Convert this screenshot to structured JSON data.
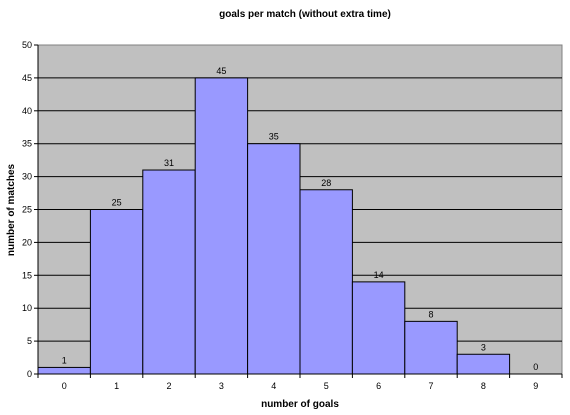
{
  "chart_data": {
    "type": "bar",
    "title": "goals per match (without extra time)",
    "xlabel": "number of goals",
    "ylabel": "number of matches",
    "categories": [
      "0",
      "1",
      "2",
      "3",
      "4",
      "5",
      "6",
      "7",
      "8",
      "9"
    ],
    "values": [
      1,
      25,
      31,
      45,
      35,
      28,
      14,
      8,
      3,
      0
    ],
    "ylim": [
      0,
      50
    ],
    "yticks": [
      0,
      5,
      10,
      15,
      20,
      25,
      30,
      35,
      40,
      45,
      50
    ],
    "grid": true,
    "legend": "none",
    "colors": {
      "plot_background": "#c0c0c0",
      "bar_fill": "#9999ff",
      "bar_stroke": "#000000",
      "gridline": "#000000"
    }
  }
}
